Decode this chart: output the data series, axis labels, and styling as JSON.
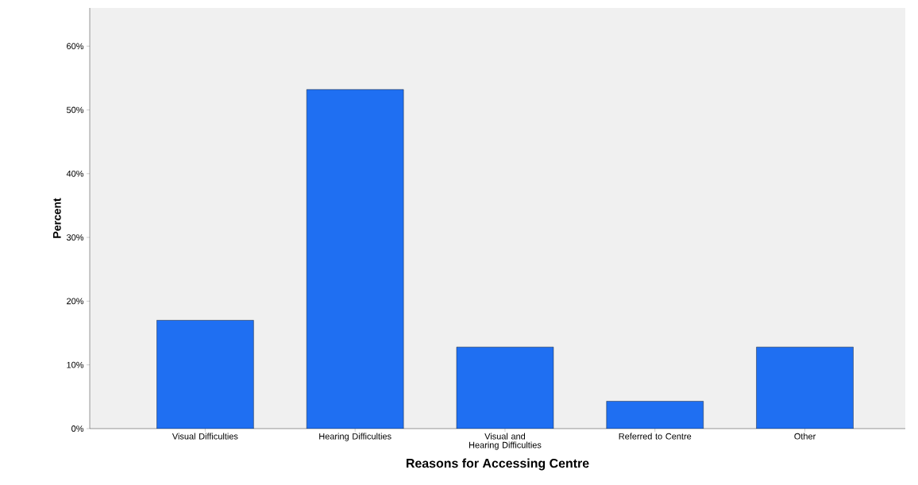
{
  "chart_data": {
    "type": "bar",
    "xlabel": "Reasons for Accessing Centre",
    "ylabel": "Percent",
    "categories": [
      "Visual Difficulties",
      "Hearing Difficulties",
      "Visual and Hearing Difficulties",
      "Referred to Centre",
      "Other"
    ],
    "values": [
      17.0,
      53.2,
      12.8,
      4.3,
      12.8
    ],
    "color": "#1f6ff2",
    "ylim": [
      0,
      66
    ],
    "yticks": [
      {
        "value": 0,
        "label": "0%"
      },
      {
        "value": 10,
        "label": "10%"
      },
      {
        "value": 20,
        "label": "20%"
      },
      {
        "value": 30,
        "label": "30%"
      },
      {
        "value": 40,
        "label": "40%"
      },
      {
        "value": 50,
        "label": "50%"
      },
      {
        "value": 60,
        "label": "60%"
      }
    ],
    "grid": false
  }
}
